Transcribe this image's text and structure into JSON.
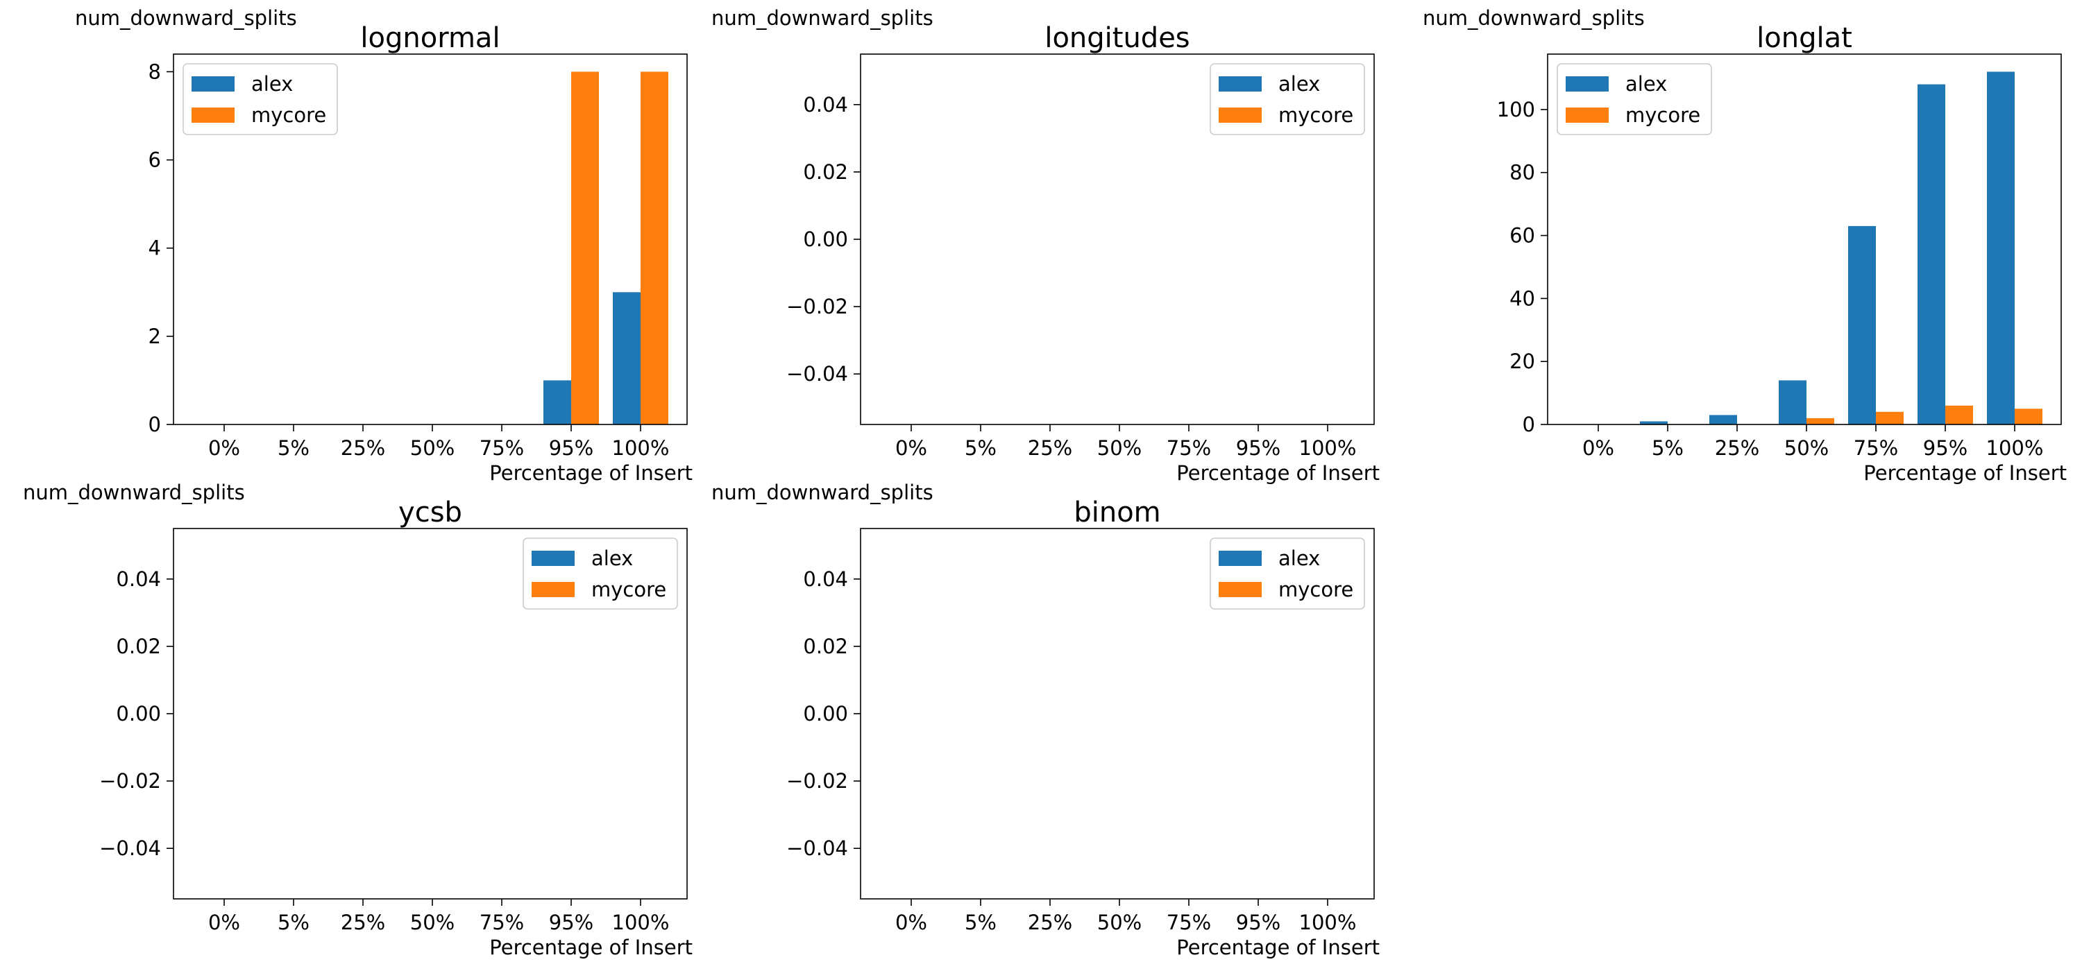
{
  "figure": {
    "colors": {
      "alex": "#1f77b4",
      "mycore": "#ff7f0e",
      "axes": "#000000",
      "legend_border": "#cccccc"
    }
  },
  "chart_data": [
    {
      "type": "bar",
      "title": "lognormal",
      "ylabel": "num_downward_splits",
      "xlabel": "Percentage of Insert",
      "categories": [
        "0%",
        "5%",
        "25%",
        "50%",
        "75%",
        "95%",
        "100%"
      ],
      "series": [
        {
          "name": "alex",
          "values": [
            0,
            0,
            0,
            0,
            0,
            1,
            3
          ]
        },
        {
          "name": "mycore",
          "values": [
            0,
            0,
            0,
            0,
            0,
            8,
            8
          ]
        }
      ],
      "ylim": [
        0,
        8.4
      ],
      "yticks": [
        0,
        2,
        4,
        6,
        8
      ],
      "ytick_labels": [
        "0",
        "2",
        "4",
        "6",
        "8"
      ],
      "legend_position": "top-left",
      "grid": false
    },
    {
      "type": "bar",
      "title": "longitudes",
      "ylabel": "num_downward_splits",
      "xlabel": "Percentage of Insert",
      "categories": [
        "0%",
        "5%",
        "25%",
        "50%",
        "75%",
        "95%",
        "100%"
      ],
      "series": [
        {
          "name": "alex",
          "values": [
            0,
            0,
            0,
            0,
            0,
            0,
            0
          ]
        },
        {
          "name": "mycore",
          "values": [
            0,
            0,
            0,
            0,
            0,
            0,
            0
          ]
        }
      ],
      "ylim": [
        -0.055,
        0.055
      ],
      "yticks": [
        -0.04,
        -0.02,
        0.0,
        0.02,
        0.04
      ],
      "ytick_labels": [
        "−0.04",
        "−0.02",
        "0.00",
        "0.02",
        "0.04"
      ],
      "legend_position": "top-right",
      "grid": false
    },
    {
      "type": "bar",
      "title": "longlat",
      "ylabel": "num_downward_splits",
      "xlabel": "Percentage of Insert",
      "categories": [
        "0%",
        "5%",
        "25%",
        "50%",
        "75%",
        "95%",
        "100%"
      ],
      "series": [
        {
          "name": "alex",
          "values": [
            0,
            1,
            3,
            14,
            63,
            108,
            112
          ]
        },
        {
          "name": "mycore",
          "values": [
            0,
            0,
            0,
            2,
            4,
            6,
            5
          ]
        }
      ],
      "ylim": [
        0,
        117.6
      ],
      "yticks": [
        0,
        20,
        40,
        60,
        80,
        100
      ],
      "ytick_labels": [
        "0",
        "20",
        "40",
        "60",
        "80",
        "100"
      ],
      "legend_position": "top-left",
      "grid": false
    },
    {
      "type": "bar",
      "title": "ycsb",
      "ylabel": "num_downward_splits",
      "xlabel": "Percentage of Insert",
      "categories": [
        "0%",
        "5%",
        "25%",
        "50%",
        "75%",
        "95%",
        "100%"
      ],
      "series": [
        {
          "name": "alex",
          "values": [
            0,
            0,
            0,
            0,
            0,
            0,
            0
          ]
        },
        {
          "name": "mycore",
          "values": [
            0,
            0,
            0,
            0,
            0,
            0,
            0
          ]
        }
      ],
      "ylim": [
        -0.055,
        0.055
      ],
      "yticks": [
        -0.04,
        -0.02,
        0.0,
        0.02,
        0.04
      ],
      "ytick_labels": [
        "−0.04",
        "−0.02",
        "0.00",
        "0.02",
        "0.04"
      ],
      "legend_position": "top-right",
      "grid": false
    },
    {
      "type": "bar",
      "title": "binom",
      "ylabel": "num_downward_splits",
      "xlabel": "Percentage of Insert",
      "categories": [
        "0%",
        "5%",
        "25%",
        "50%",
        "75%",
        "95%",
        "100%"
      ],
      "series": [
        {
          "name": "alex",
          "values": [
            0,
            0,
            0,
            0,
            0,
            0,
            0
          ]
        },
        {
          "name": "mycore",
          "values": [
            0,
            0,
            0,
            0,
            0,
            0,
            0
          ]
        }
      ],
      "ylim": [
        -0.055,
        0.055
      ],
      "yticks": [
        -0.04,
        -0.02,
        0.0,
        0.02,
        0.04
      ],
      "ytick_labels": [
        "−0.04",
        "−0.02",
        "0.00",
        "0.02",
        "0.04"
      ],
      "legend_position": "top-right",
      "grid": false
    }
  ]
}
